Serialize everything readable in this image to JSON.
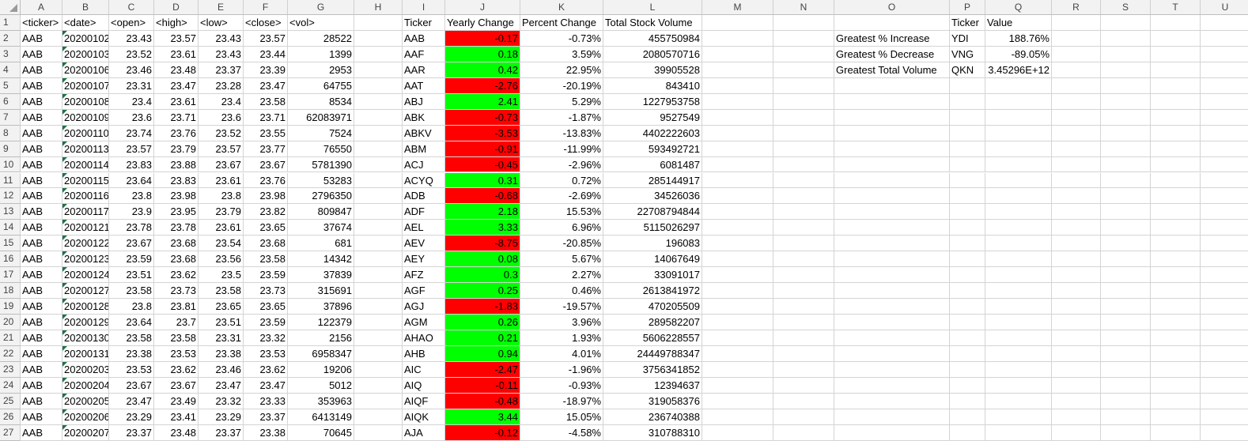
{
  "columns": [
    "A",
    "B",
    "C",
    "D",
    "E",
    "F",
    "G",
    "H",
    "I",
    "J",
    "K",
    "L",
    "M",
    "N",
    "O",
    "P",
    "Q",
    "R",
    "S",
    "T",
    "U"
  ],
  "headers": {
    "A": "<ticker>",
    "B": "<date>",
    "C": "<open>",
    "D": "<high>",
    "E": "<low>",
    "F": "<close>",
    "G": "<vol>",
    "I": "Ticker",
    "J": "Yearly Change",
    "K": "Percent Change",
    "L": "Total Stock Volume",
    "P": "Ticker",
    "Q": "Value"
  },
  "raw_rows": [
    [
      "AAB",
      "20200102",
      "23.43",
      "23.57",
      "23.43",
      "23.57",
      "28522"
    ],
    [
      "AAB",
      "20200103",
      "23.52",
      "23.61",
      "23.43",
      "23.44",
      "1399"
    ],
    [
      "AAB",
      "20200106",
      "23.46",
      "23.48",
      "23.37",
      "23.39",
      "2953"
    ],
    [
      "AAB",
      "20200107",
      "23.31",
      "23.47",
      "23.28",
      "23.47",
      "64755"
    ],
    [
      "AAB",
      "20200108",
      "23.4",
      "23.61",
      "23.4",
      "23.58",
      "8534"
    ],
    [
      "AAB",
      "20200109",
      "23.6",
      "23.71",
      "23.6",
      "23.71",
      "62083971"
    ],
    [
      "AAB",
      "20200110",
      "23.74",
      "23.76",
      "23.52",
      "23.55",
      "7524"
    ],
    [
      "AAB",
      "20200113",
      "23.57",
      "23.79",
      "23.57",
      "23.77",
      "76550"
    ],
    [
      "AAB",
      "20200114",
      "23.83",
      "23.88",
      "23.67",
      "23.67",
      "5781390"
    ],
    [
      "AAB",
      "20200115",
      "23.64",
      "23.83",
      "23.61",
      "23.76",
      "53283"
    ],
    [
      "AAB",
      "20200116",
      "23.8",
      "23.98",
      "23.8",
      "23.98",
      "2796350"
    ],
    [
      "AAB",
      "20200117",
      "23.9",
      "23.95",
      "23.79",
      "23.82",
      "809847"
    ],
    [
      "AAB",
      "20200121",
      "23.78",
      "23.78",
      "23.61",
      "23.65",
      "37674"
    ],
    [
      "AAB",
      "20200122",
      "23.67",
      "23.68",
      "23.54",
      "23.68",
      "681"
    ],
    [
      "AAB",
      "20200123",
      "23.59",
      "23.68",
      "23.56",
      "23.58",
      "14342"
    ],
    [
      "AAB",
      "20200124",
      "23.51",
      "23.62",
      "23.5",
      "23.59",
      "37839"
    ],
    [
      "AAB",
      "20200127",
      "23.58",
      "23.73",
      "23.58",
      "23.73",
      "315691"
    ],
    [
      "AAB",
      "20200128",
      "23.8",
      "23.81",
      "23.65",
      "23.65",
      "37896"
    ],
    [
      "AAB",
      "20200129",
      "23.64",
      "23.7",
      "23.51",
      "23.59",
      "122379"
    ],
    [
      "AAB",
      "20200130",
      "23.58",
      "23.58",
      "23.31",
      "23.32",
      "2156"
    ],
    [
      "AAB",
      "20200131",
      "23.38",
      "23.53",
      "23.38",
      "23.53",
      "6958347"
    ],
    [
      "AAB",
      "20200203",
      "23.53",
      "23.62",
      "23.46",
      "23.62",
      "19206"
    ],
    [
      "AAB",
      "20200204",
      "23.67",
      "23.67",
      "23.47",
      "23.47",
      "5012"
    ],
    [
      "AAB",
      "20200205",
      "23.47",
      "23.49",
      "23.32",
      "23.33",
      "353963"
    ],
    [
      "AAB",
      "20200206",
      "23.29",
      "23.41",
      "23.29",
      "23.37",
      "6413149"
    ],
    [
      "AAB",
      "20200207",
      "23.37",
      "23.48",
      "23.37",
      "23.38",
      "70645"
    ]
  ],
  "summary_rows": [
    [
      "AAB",
      "-0.17",
      "-0.73%",
      "455750984"
    ],
    [
      "AAF",
      "0.18",
      "3.59%",
      "2080570716"
    ],
    [
      "AAR",
      "0.42",
      "22.95%",
      "39905528"
    ],
    [
      "AAT",
      "-2.76",
      "-20.19%",
      "843410"
    ],
    [
      "ABJ",
      "2.41",
      "5.29%",
      "1227953758"
    ],
    [
      "ABK",
      "-0.73",
      "-1.87%",
      "9527549"
    ],
    [
      "ABKV",
      "-3.53",
      "-13.83%",
      "4402222603"
    ],
    [
      "ABM",
      "-0.91",
      "-11.99%",
      "593492721"
    ],
    [
      "ACJ",
      "-0.45",
      "-2.96%",
      "6081487"
    ],
    [
      "ACYQ",
      "0.31",
      "0.72%",
      "285144917"
    ],
    [
      "ADB",
      "-0.68",
      "-2.69%",
      "34526036"
    ],
    [
      "ADF",
      "2.18",
      "15.53%",
      "22708794844"
    ],
    [
      "AEL",
      "3.33",
      "6.96%",
      "5115026297"
    ],
    [
      "AEV",
      "-8.75",
      "-20.85%",
      "196083"
    ],
    [
      "AEY",
      "0.08",
      "5.67%",
      "14067649"
    ],
    [
      "AFZ",
      "0.3",
      "2.27%",
      "33091017"
    ],
    [
      "AGF",
      "0.25",
      "0.46%",
      "2613841972"
    ],
    [
      "AGJ",
      "-1.83",
      "-19.57%",
      "470205509"
    ],
    [
      "AGM",
      "0.26",
      "3.96%",
      "289582207"
    ],
    [
      "AHAO",
      "0.21",
      "1.93%",
      "5606228557"
    ],
    [
      "AHB",
      "0.94",
      "4.01%",
      "24449788347"
    ],
    [
      "AIC",
      "-2.47",
      "-1.96%",
      "3756341852"
    ],
    [
      "AIQ",
      "-0.11",
      "-0.93%",
      "12394637"
    ],
    [
      "AIQF",
      "-0.48",
      "-18.97%",
      "319058376"
    ],
    [
      "AIQK",
      "3.44",
      "15.05%",
      "236740388"
    ],
    [
      "AJA",
      "-0.12",
      "-4.58%",
      "310788310"
    ]
  ],
  "greatest": [
    {
      "label": "Greatest % Increase",
      "ticker": "YDI",
      "value": "188.76%"
    },
    {
      "label": "Greatest % Decrease",
      "ticker": "VNG",
      "value": "-89.05%"
    },
    {
      "label": "Greatest Total Volume",
      "ticker": "QKN",
      "value": "3.45296E+12"
    }
  ],
  "colors": {
    "positive": "#00ff00",
    "negative": "#ff0000",
    "header_bg": "#f2f2f2",
    "grid": "#d4d4d4",
    "number_flag": "#1e7145"
  }
}
